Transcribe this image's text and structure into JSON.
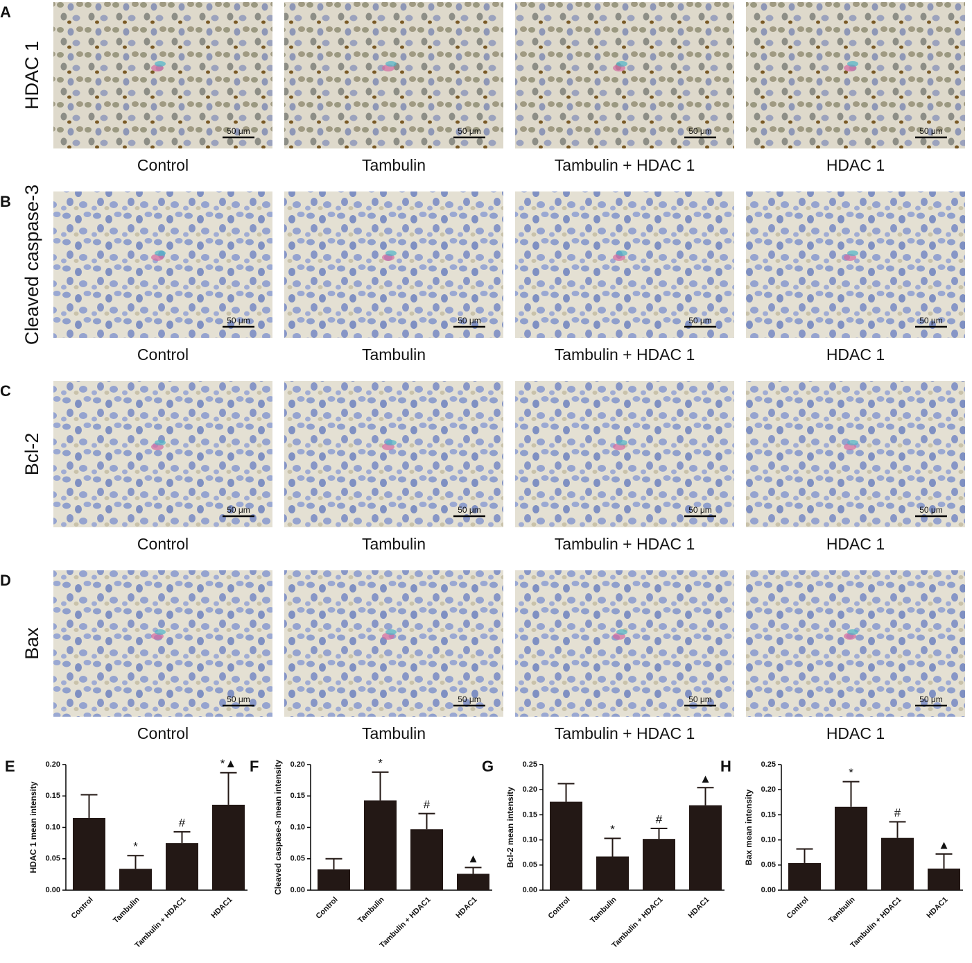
{
  "image_panels": {
    "scale_bar": "50 μm",
    "rows": [
      {
        "letter": "A",
        "stain": "HDAC 1",
        "columns": [
          "Control",
          "Tambulin",
          "Tambulin + HDAC 1",
          "HDAC 1"
        ]
      },
      {
        "letter": "B",
        "stain": "Cleaved caspase-3",
        "columns": [
          "Control",
          "Tambulin",
          "Tambulin + HDAC 1",
          "HDAC 1"
        ]
      },
      {
        "letter": "C",
        "stain": "Bcl-2",
        "columns": [
          "Control",
          "Tambulin",
          "Tambulin + HDAC 1",
          "HDAC 1"
        ]
      },
      {
        "letter": "D",
        "stain": "Bax",
        "columns": [
          "Control",
          "Tambulin",
          "Tambulin + HDAC 1",
          "HDAC 1"
        ]
      }
    ]
  },
  "chart_data": [
    {
      "type": "bar",
      "panel": "E",
      "y_label": "HDAC 1 mean intensity",
      "color": "#231815",
      "categories": [
        "Control",
        "Tambulin",
        "Tambulin + HDAC1",
        "HDAC1"
      ],
      "values": [
        0.115,
        0.034,
        0.075,
        0.136
      ],
      "errors": [
        0.037,
        0.021,
        0.018,
        0.051
      ],
      "annotations": [
        null,
        "*",
        "#",
        "*▲"
      ],
      "ylim": [
        0,
        0.2
      ],
      "yticks": [
        {
          "value": 0,
          "label": "0.00"
        },
        {
          "value": 0.05,
          "label": "0.05"
        },
        {
          "value": 0.1,
          "label": "0.10"
        },
        {
          "value": 0.15,
          "label": "0.15"
        },
        {
          "value": 0.2,
          "label": "0.20"
        }
      ]
    },
    {
      "type": "bar",
      "panel": "F",
      "y_label": "Cleaved caspase-3 mean intensity",
      "color": "#231815",
      "categories": [
        "Control",
        "Tambulin",
        "Tambulin + HDAC1",
        "HDAC1"
      ],
      "values": [
        0.033,
        0.143,
        0.097,
        0.026
      ],
      "errors": [
        0.017,
        0.045,
        0.025,
        0.01
      ],
      "annotations": [
        null,
        "*",
        "#",
        "▲"
      ],
      "ylim": [
        0,
        0.2
      ],
      "yticks": [
        {
          "value": 0,
          "label": "0.00"
        },
        {
          "value": 0.05,
          "label": "0.05"
        },
        {
          "value": 0.1,
          "label": "0.10"
        },
        {
          "value": 0.15,
          "label": "0.15"
        },
        {
          "value": 0.2,
          "label": "0.20"
        }
      ]
    },
    {
      "type": "bar",
      "panel": "G",
      "y_label": "Bcl-2 mean intensity",
      "color": "#231815",
      "categories": [
        "Control",
        "Tambulin",
        "Tambulin + HDAC1",
        "HDAC1"
      ],
      "values": [
        0.176,
        0.067,
        0.102,
        0.169
      ],
      "errors": [
        0.036,
        0.036,
        0.021,
        0.035
      ],
      "annotations": [
        null,
        "*",
        "#",
        "▲"
      ],
      "ylim": [
        0,
        0.25
      ],
      "yticks": [
        {
          "value": 0,
          "label": "0.00"
        },
        {
          "value": 0.05,
          "label": "0.05"
        },
        {
          "value": 0.1,
          "label": "0.10"
        },
        {
          "value": 0.15,
          "label": "0.15"
        },
        {
          "value": 0.2,
          "label": "0.20"
        },
        {
          "value": 0.25,
          "label": "0.25"
        }
      ]
    },
    {
      "type": "bar",
      "panel": "H",
      "y_label": "Bax mean intensity",
      "color": "#231815",
      "categories": [
        "Control",
        "Tambulin",
        "Tambulin + HDAC1",
        "HDAC1"
      ],
      "values": [
        0.054,
        0.166,
        0.104,
        0.043
      ],
      "errors": [
        0.028,
        0.05,
        0.032,
        0.029
      ],
      "annotations": [
        null,
        "*",
        "#",
        "▲"
      ],
      "ylim": [
        0,
        0.25
      ],
      "yticks": [
        {
          "value": 0,
          "label": "0.00"
        },
        {
          "value": 0.05,
          "label": "0.05"
        },
        {
          "value": 0.1,
          "label": "0.10"
        },
        {
          "value": 0.15,
          "label": "0.15"
        },
        {
          "value": 0.2,
          "label": "0.20"
        },
        {
          "value": 0.25,
          "label": "0.25"
        }
      ]
    }
  ]
}
